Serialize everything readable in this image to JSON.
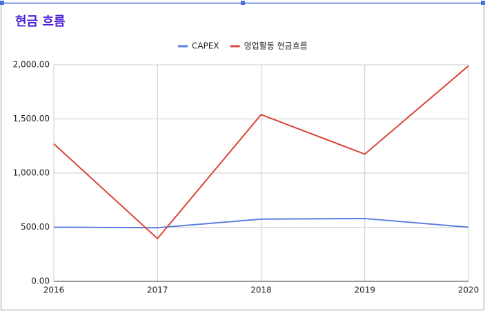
{
  "chart_data": {
    "type": "line",
    "title": "현금 흐름",
    "x": [
      2016,
      2017,
      2018,
      2019,
      2020
    ],
    "xlim": [
      2016,
      2020
    ],
    "xticks": [
      2016,
      2017,
      2018,
      2019,
      2020
    ],
    "ylim": [
      0,
      2000
    ],
    "yticks": [
      {
        "value": 0,
        "label": "0.00"
      },
      {
        "value": 500,
        "label": "500.00"
      },
      {
        "value": 1000,
        "label": "1,000.00"
      },
      {
        "value": 1500,
        "label": "1,500.00"
      },
      {
        "value": 2000,
        "label": "2,000.00"
      }
    ],
    "grid": true,
    "legend": "top",
    "series": [
      {
        "name": "CAPEX",
        "color": "#5b7fe0",
        "values": [
          500,
          495,
          575,
          580,
          500
        ]
      },
      {
        "name": "영업활동 현금흐름",
        "color": "#db4437",
        "values": [
          1270,
          395,
          1540,
          1175,
          1990
        ]
      }
    ]
  }
}
